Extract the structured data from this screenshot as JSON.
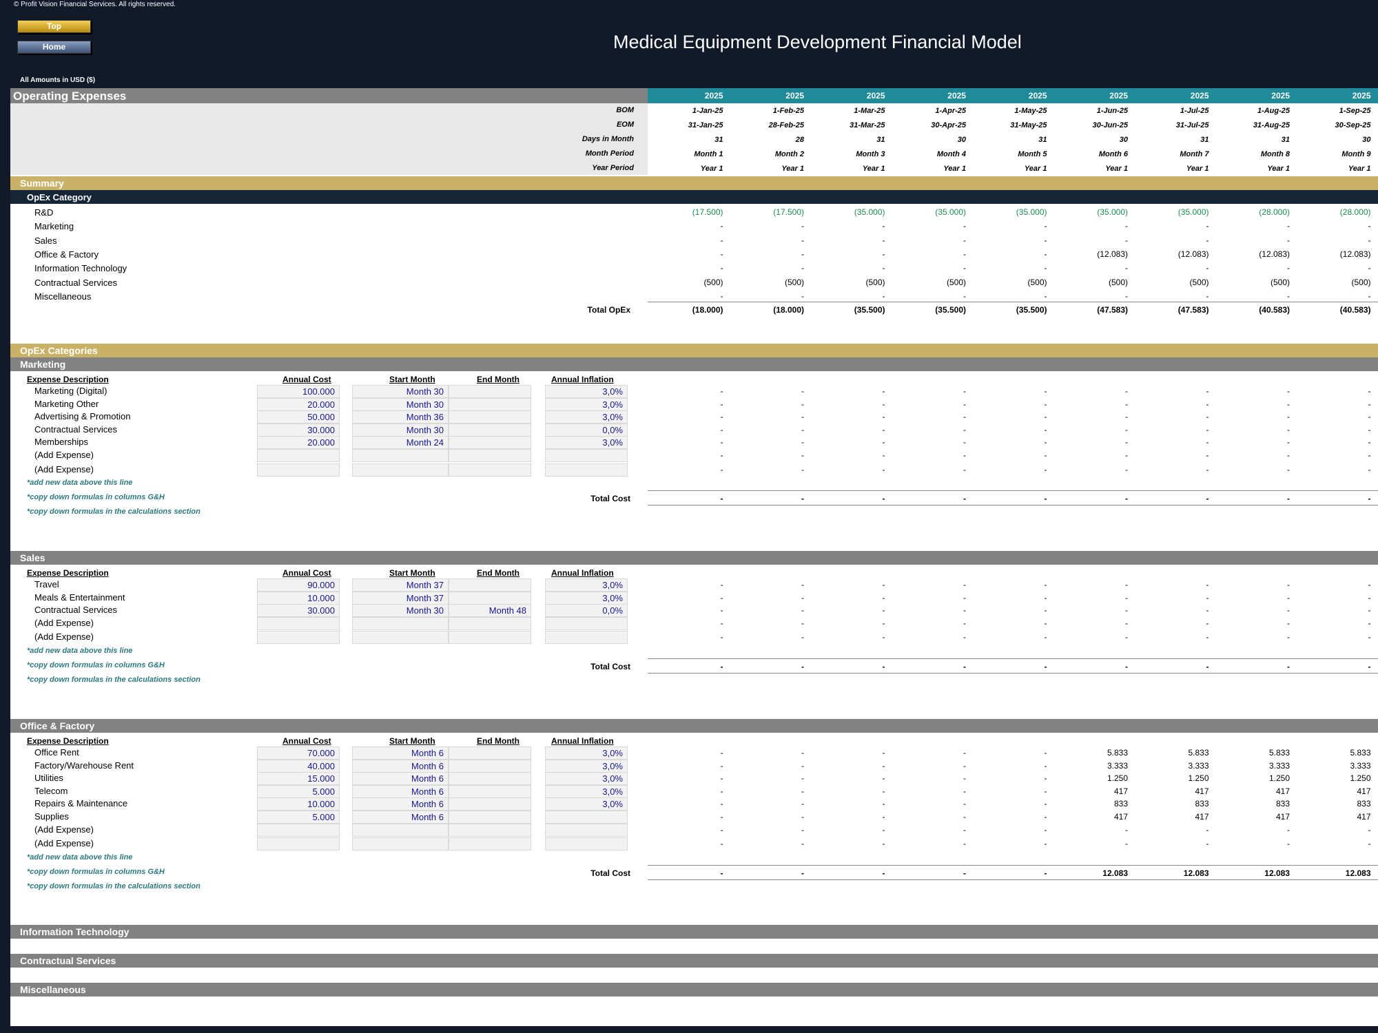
{
  "copyright": "© Profit Vision Financial Services. All rights reserved.",
  "nav": {
    "top": "Top",
    "home": "Home"
  },
  "title": "Medical Equipment Development Financial Model",
  "amounts_label": "All Amounts in  USD ($)",
  "sheet_title": "Operating Expenses",
  "header_labels": [
    "BOM",
    "EOM",
    "Days in Month",
    "Month Period",
    "Year Period"
  ],
  "months": [
    {
      "year": "2025",
      "bom": "1-Jan-25",
      "eom": "31-Jan-25",
      "days": "31",
      "month": "Month 1",
      "period": "Year 1"
    },
    {
      "year": "2025",
      "bom": "1-Feb-25",
      "eom": "28-Feb-25",
      "days": "28",
      "month": "Month 2",
      "period": "Year 1"
    },
    {
      "year": "2025",
      "bom": "1-Mar-25",
      "eom": "31-Mar-25",
      "days": "31",
      "month": "Month 3",
      "period": "Year 1"
    },
    {
      "year": "2025",
      "bom": "1-Apr-25",
      "eom": "30-Apr-25",
      "days": "30",
      "month": "Month 4",
      "period": "Year 1"
    },
    {
      "year": "2025",
      "bom": "1-May-25",
      "eom": "31-May-25",
      "days": "31",
      "month": "Month 5",
      "period": "Year 1"
    },
    {
      "year": "2025",
      "bom": "1-Jun-25",
      "eom": "30-Jun-25",
      "days": "30",
      "month": "Month 6",
      "period": "Year 1"
    },
    {
      "year": "2025",
      "bom": "1-Jul-25",
      "eom": "31-Jul-25",
      "days": "31",
      "month": "Month 7",
      "period": "Year 1"
    },
    {
      "year": "2025",
      "bom": "1-Aug-25",
      "eom": "31-Aug-25",
      "days": "31",
      "month": "Month 8",
      "period": "Year 1"
    },
    {
      "year": "2025",
      "bom": "1-Sep-25",
      "eom": "30-Sep-25",
      "days": "30",
      "month": "Month 9",
      "period": "Year 1"
    }
  ],
  "summary": {
    "title": "Summary",
    "category_header": "OpEx Category",
    "rows": [
      {
        "label": "R&D",
        "values": [
          "(17.500)",
          "(17.500)",
          "(35.000)",
          "(35.000)",
          "(35.000)",
          "(35.000)",
          "(35.000)",
          "(28.000)",
          "(28.000)"
        ],
        "green": true
      },
      {
        "label": "Marketing",
        "values": [
          "-",
          "-",
          "-",
          "-",
          "-",
          "-",
          "-",
          "-",
          "-"
        ]
      },
      {
        "label": "Sales",
        "values": [
          "-",
          "-",
          "-",
          "-",
          "-",
          "-",
          "-",
          "-",
          "-"
        ]
      },
      {
        "label": "Office & Factory",
        "values": [
          "-",
          "-",
          "-",
          "-",
          "-",
          "(12.083)",
          "(12.083)",
          "(12.083)",
          "(12.083)"
        ]
      },
      {
        "label": "Information Technology",
        "values": [
          "-",
          "-",
          "-",
          "-",
          "-",
          "-",
          "-",
          "-",
          "-"
        ]
      },
      {
        "label": "Contractual Services",
        "values": [
          "(500)",
          "(500)",
          "(500)",
          "(500)",
          "(500)",
          "(500)",
          "(500)",
          "(500)",
          "(500)"
        ]
      },
      {
        "label": "Miscellaneous",
        "values": [
          "-",
          "-",
          "-",
          "-",
          "-",
          "-",
          "-",
          "-",
          "-"
        ]
      }
    ],
    "total_label": "Total OpEx",
    "total_values": [
      "(18.000)",
      "(18.000)",
      "(35.500)",
      "(35.500)",
      "(35.500)",
      "(47.583)",
      "(47.583)",
      "(40.583)",
      "(40.583)"
    ]
  },
  "opex_categories_title": "OpEx Categories",
  "col_headers": {
    "desc": "Expense Description",
    "cost": "Annual Cost",
    "start": "Start Month",
    "end": "End Month",
    "infl": "Annual Inflation"
  },
  "notes": [
    "*add new data above this line",
    "*copy down formulas in columns G&H",
    "*copy down formulas in the calculations section"
  ],
  "total_cost_label": "Total Cost",
  "sections": [
    {
      "title": "Marketing",
      "rows": [
        {
          "desc": "Marketing (Digital)",
          "cost": "100.000",
          "start": "Month 30",
          "end": "",
          "infl": "3,0%",
          "values": [
            "-",
            "-",
            "-",
            "-",
            "-",
            "-",
            "-",
            "-",
            "-"
          ]
        },
        {
          "desc": "Marketing Other",
          "cost": "20.000",
          "start": "Month 30",
          "end": "",
          "infl": "3,0%",
          "values": [
            "-",
            "-",
            "-",
            "-",
            "-",
            "-",
            "-",
            "-",
            "-"
          ]
        },
        {
          "desc": "Advertising & Promotion",
          "cost": "50.000",
          "start": "Month 36",
          "end": "",
          "infl": "3,0%",
          "values": [
            "-",
            "-",
            "-",
            "-",
            "-",
            "-",
            "-",
            "-",
            "-"
          ]
        },
        {
          "desc": "Contractual Services",
          "cost": "30.000",
          "start": "Month 30",
          "end": "",
          "infl": "0,0%",
          "values": [
            "-",
            "-",
            "-",
            "-",
            "-",
            "-",
            "-",
            "-",
            "-"
          ]
        },
        {
          "desc": "Memberships",
          "cost": "20.000",
          "start": "Month 24",
          "end": "",
          "infl": "3,0%",
          "values": [
            "-",
            "-",
            "-",
            "-",
            "-",
            "-",
            "-",
            "-",
            "-"
          ]
        },
        {
          "desc": "(Add Expense)",
          "cost": "",
          "start": "",
          "end": "",
          "infl": "",
          "values": [
            "-",
            "-",
            "-",
            "-",
            "-",
            "-",
            "-",
            "-",
            "-"
          ]
        },
        {
          "desc": "(Add Expense)",
          "cost": "",
          "start": "",
          "end": "",
          "infl": "",
          "values": [
            "-",
            "-",
            "-",
            "-",
            "-",
            "-",
            "-",
            "-",
            "-"
          ]
        }
      ],
      "totals": [
        "-",
        "-",
        "-",
        "-",
        "-",
        "-",
        "-",
        "-",
        "-"
      ]
    },
    {
      "title": "Sales",
      "rows": [
        {
          "desc": "Travel",
          "cost": "90.000",
          "start": "Month 37",
          "end": "",
          "infl": "3,0%",
          "values": [
            "-",
            "-",
            "-",
            "-",
            "-",
            "-",
            "-",
            "-",
            "-"
          ]
        },
        {
          "desc": "Meals & Entertainment",
          "cost": "10.000",
          "start": "Month 37",
          "end": "",
          "infl": "3,0%",
          "values": [
            "-",
            "-",
            "-",
            "-",
            "-",
            "-",
            "-",
            "-",
            "-"
          ]
        },
        {
          "desc": "Contractual Services",
          "cost": "30.000",
          "start": "Month 30",
          "end": "Month 48",
          "infl": "0,0%",
          "values": [
            "-",
            "-",
            "-",
            "-",
            "-",
            "-",
            "-",
            "-",
            "-"
          ]
        },
        {
          "desc": "(Add Expense)",
          "cost": "",
          "start": "",
          "end": "",
          "infl": "",
          "values": [
            "-",
            "-",
            "-",
            "-",
            "-",
            "-",
            "-",
            "-",
            "-"
          ]
        },
        {
          "desc": "(Add Expense)",
          "cost": "",
          "start": "",
          "end": "",
          "infl": "",
          "values": [
            "-",
            "-",
            "-",
            "-",
            "-",
            "-",
            "-",
            "-",
            "-"
          ]
        }
      ],
      "totals": [
        "-",
        "-",
        "-",
        "-",
        "-",
        "-",
        "-",
        "-",
        "-"
      ]
    },
    {
      "title": "Office & Factory",
      "rows": [
        {
          "desc": "Office Rent",
          "cost": "70.000",
          "start": "Month 6",
          "end": "",
          "infl": "3,0%",
          "values": [
            "-",
            "-",
            "-",
            "-",
            "-",
            "5.833",
            "5.833",
            "5.833",
            "5.833"
          ]
        },
        {
          "desc": "Factory/Warehouse Rent",
          "cost": "40.000",
          "start": "Month 6",
          "end": "",
          "infl": "3,0%",
          "values": [
            "-",
            "-",
            "-",
            "-",
            "-",
            "3.333",
            "3.333",
            "3.333",
            "3.333"
          ]
        },
        {
          "desc": "Utilities",
          "cost": "15.000",
          "start": "Month 6",
          "end": "",
          "infl": "3,0%",
          "values": [
            "-",
            "-",
            "-",
            "-",
            "-",
            "1.250",
            "1.250",
            "1.250",
            "1.250"
          ]
        },
        {
          "desc": "Telecom",
          "cost": "5.000",
          "start": "Month 6",
          "end": "",
          "infl": "3,0%",
          "values": [
            "-",
            "-",
            "-",
            "-",
            "-",
            "417",
            "417",
            "417",
            "417"
          ]
        },
        {
          "desc": "Repairs & Maintenance",
          "cost": "10.000",
          "start": "Month 6",
          "end": "",
          "infl": "3,0%",
          "values": [
            "-",
            "-",
            "-",
            "-",
            "-",
            "833",
            "833",
            "833",
            "833"
          ]
        },
        {
          "desc": "Supplies",
          "cost": "5.000",
          "start": "Month 6",
          "end": "",
          "infl": "",
          "values": [
            "-",
            "-",
            "-",
            "-",
            "-",
            "417",
            "417",
            "417",
            "417"
          ]
        },
        {
          "desc": "(Add Expense)",
          "cost": "",
          "start": "",
          "end": "",
          "infl": "",
          "values": [
            "-",
            "-",
            "-",
            "-",
            "-",
            "-",
            "-",
            "-",
            "-"
          ]
        },
        {
          "desc": "(Add Expense)",
          "cost": "",
          "start": "",
          "end": "",
          "infl": "",
          "values": [
            "-",
            "-",
            "-",
            "-",
            "-",
            "-",
            "-",
            "-",
            "-"
          ]
        }
      ],
      "totals": [
        "-",
        "-",
        "-",
        "-",
        "-",
        "12.083",
        "12.083",
        "12.083",
        "12.083"
      ]
    }
  ],
  "collapsed_sections": [
    "Information Technology",
    "Contractual Services",
    "Miscellaneous"
  ]
}
